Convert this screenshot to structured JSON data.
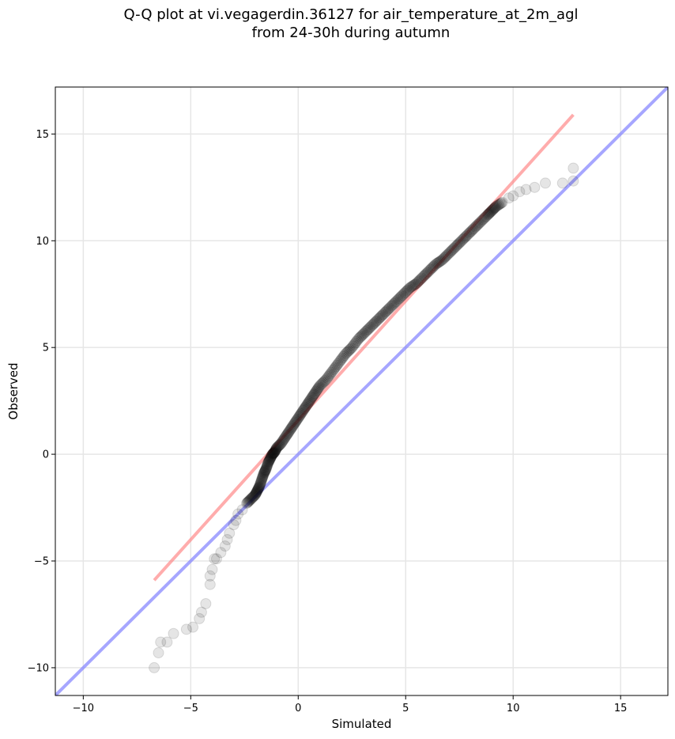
{
  "chart_data": {
    "type": "scatter",
    "title_line1": "Q-Q plot at vi.vegagerdin.36127 for air_temperature_at_2m_agl",
    "title_line2": "from 24-30h during autumn",
    "xlabel": "Simulated",
    "ylabel": "Observed",
    "xlim": [
      -11.3,
      17.2
    ],
    "ylim": [
      -11.3,
      17.2
    ],
    "xticks": [
      -10,
      -5,
      0,
      5,
      10,
      15
    ],
    "yticks": [
      -10,
      -5,
      0,
      5,
      10,
      15
    ],
    "xtick_labels": [
      "−10",
      "−5",
      "0",
      "5",
      "10",
      "15"
    ],
    "ytick_labels": [
      "−10",
      "−5",
      "0",
      "5",
      "10",
      "15"
    ],
    "grid": true,
    "colors": {
      "points": "#000000",
      "identity_line": "#8080ff",
      "fit_line": "#ff8080",
      "grid": "#e6e6e6"
    },
    "identity_line": {
      "x": [
        -11.3,
        17.2
      ],
      "y": [
        -11.3,
        17.2
      ]
    },
    "fit_line": {
      "x": [
        -6.7,
        12.8
      ],
      "y": [
        -5.9,
        15.9
      ]
    },
    "points": {
      "x": [
        -6.7,
        -6.5,
        -6.4,
        -6.1,
        -5.8,
        -5.2,
        -4.9,
        -4.6,
        -4.5,
        -4.3,
        -4.1,
        -4.1,
        -4.0,
        -3.9,
        -3.8,
        -3.6,
        -3.4,
        -3.3,
        -3.2,
        -3.0,
        -2.9,
        -2.8,
        -2.6,
        -2.4,
        -2.2,
        -2.0,
        -1.9,
        -1.8,
        -1.7,
        -1.6,
        -1.5,
        -1.4,
        -1.3,
        -1.2,
        -1.1,
        -1.0,
        -0.8,
        -0.6,
        -0.4,
        -0.2,
        0.0,
        0.2,
        0.4,
        0.6,
        0.8,
        1.0,
        1.3,
        1.6,
        1.9,
        2.2,
        2.5,
        2.8,
        3.1,
        3.4,
        3.7,
        4.0,
        4.3,
        4.6,
        4.9,
        5.2,
        5.5,
        5.8,
        6.1,
        6.4,
        6.7,
        7.0,
        7.3,
        7.6,
        7.9,
        8.2,
        8.5,
        8.8,
        9.0,
        9.2,
        9.5,
        9.8,
        10.0,
        10.3,
        10.6,
        11.0,
        11.5,
        12.3,
        12.8,
        12.8
      ],
      "y": [
        -10.0,
        -9.3,
        -8.8,
        -8.8,
        -8.4,
        -8.2,
        -8.1,
        -7.7,
        -7.4,
        -7.0,
        -6.1,
        -5.7,
        -5.4,
        -4.9,
        -4.9,
        -4.6,
        -4.3,
        -4.0,
        -3.7,
        -3.3,
        -3.1,
        -2.8,
        -2.6,
        -2.3,
        -2.1,
        -1.9,
        -1.7,
        -1.5,
        -1.2,
        -0.9,
        -0.7,
        -0.4,
        -0.2,
        0.0,
        0.1,
        0.3,
        0.5,
        0.8,
        1.1,
        1.4,
        1.7,
        2.0,
        2.3,
        2.6,
        2.9,
        3.2,
        3.5,
        3.9,
        4.3,
        4.7,
        5.0,
        5.4,
        5.7,
        6.0,
        6.3,
        6.6,
        6.9,
        7.2,
        7.5,
        7.8,
        8.0,
        8.3,
        8.6,
        8.9,
        9.1,
        9.4,
        9.7,
        10.0,
        10.3,
        10.6,
        10.9,
        11.2,
        11.4,
        11.6,
        11.8,
        12.0,
        12.1,
        12.3,
        12.4,
        12.5,
        12.7,
        12.7,
        12.8,
        13.4
      ]
    }
  }
}
